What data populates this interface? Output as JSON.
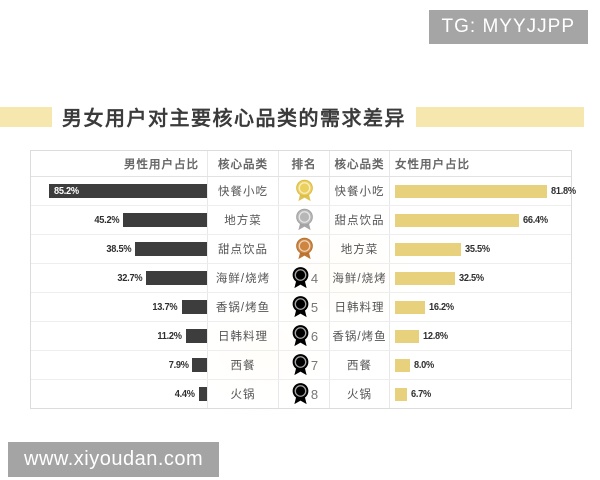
{
  "badge": {
    "text": "TG: MYYJJPP"
  },
  "title": "男女用户对主要核心品类的需求差异",
  "table": {
    "headers": {
      "male": "男性用户占比",
      "category_left": "核心品类",
      "rank": "排名",
      "category_right": "核心品类",
      "female": "女性用户占比"
    },
    "rows": [
      {
        "rank": "1",
        "medal": "gold",
        "male": {
          "label": "85.2%",
          "value": 85.2,
          "category": "快餐小吃",
          "label_inside": true
        },
        "female": {
          "label": "81.8%",
          "value": 81.8,
          "category": "快餐小吃"
        }
      },
      {
        "rank": "2",
        "medal": "silver",
        "male": {
          "label": "45.2%",
          "value": 45.2,
          "category": "地方菜",
          "label_inside": false
        },
        "female": {
          "label": "66.4%",
          "value": 66.4,
          "category": "甜点饮品"
        }
      },
      {
        "rank": "3",
        "medal": "bronze",
        "male": {
          "label": "38.5%",
          "value": 38.5,
          "category": "甜点饮品",
          "label_inside": false
        },
        "female": {
          "label": "35.5%",
          "value": 35.5,
          "category": "地方菜"
        }
      },
      {
        "rank": "4",
        "medal": null,
        "male": {
          "label": "32.7%",
          "value": 32.7,
          "category": "海鲜/烧烤",
          "label_inside": false
        },
        "female": {
          "label": "32.5%",
          "value": 32.5,
          "category": "海鲜/烧烤"
        }
      },
      {
        "rank": "5",
        "medal": null,
        "male": {
          "label": "13.7%",
          "value": 13.7,
          "category": "香锅/烤鱼",
          "label_inside": false
        },
        "female": {
          "label": "16.2%",
          "value": 16.2,
          "category": "日韩料理"
        }
      },
      {
        "rank": "6",
        "medal": null,
        "male": {
          "label": "11.2%",
          "value": 11.2,
          "category": "日韩料理",
          "label_inside": false
        },
        "female": {
          "label": "12.8%",
          "value": 12.8,
          "category": "香锅/烤鱼"
        }
      },
      {
        "rank": "7",
        "medal": null,
        "male": {
          "label": "7.9%",
          "value": 7.9,
          "category": "西餐",
          "label_inside": false
        },
        "female": {
          "label": "8.0%",
          "value": 8.0,
          "category": "西餐"
        }
      },
      {
        "rank": "8",
        "medal": null,
        "male": {
          "label": "4.4%",
          "value": 4.4,
          "category": "火锅",
          "label_inside": false
        },
        "female": {
          "label": "6.7%",
          "value": 6.7,
          "category": "火锅"
        }
      }
    ]
  },
  "site_watermark": "www.xiyoudan.com",
  "colors": {
    "male_bar": "#3d3d3d",
    "female_bar": "#e8d17c",
    "title_accent": "#f6e7ae",
    "badge_bg": "#a5a5a5",
    "gold": "#ecd05e",
    "silver": "#b7b7b7",
    "bronze": "#cd8540"
  },
  "chart_data": {
    "type": "bar",
    "title": "男女用户对主要核心品类的需求差异",
    "orientation": "horizontal",
    "xlim": [
      0,
      100
    ],
    "unit": "%",
    "series": [
      {
        "name": "男性用户占比",
        "categories": [
          "快餐小吃",
          "地方菜",
          "甜点饮品",
          "海鲜/烧烤",
          "香锅/烤鱼",
          "日韩料理",
          "西餐",
          "火锅"
        ],
        "values": [
          85.2,
          45.2,
          38.5,
          32.7,
          13.7,
          11.2,
          7.9,
          4.4
        ]
      },
      {
        "name": "女性用户占比",
        "categories": [
          "快餐小吃",
          "甜点饮品",
          "地方菜",
          "海鲜/烧烤",
          "日韩料理",
          "香锅/烤鱼",
          "西餐",
          "火锅"
        ],
        "values": [
          81.8,
          66.4,
          35.5,
          32.5,
          16.2,
          12.8,
          8.0,
          6.7
        ]
      }
    ],
    "ranks": [
      1,
      2,
      3,
      4,
      5,
      6,
      7,
      8
    ]
  }
}
